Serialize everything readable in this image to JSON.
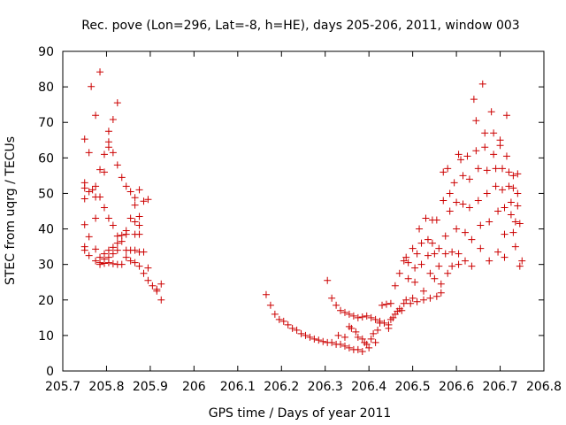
{
  "chart_data": {
    "type": "scatter",
    "title": "Rec. pove (Lon=296, Lat=-8, h=HE), days 205-206, 2011, window 003",
    "xlabel": "GPS time / Days of year 2011",
    "ylabel": "STEC from uqrg / TECUs",
    "xlim": [
      205.7,
      206.8
    ],
    "ylim": [
      0,
      90
    ],
    "xticks": [
      "205.7",
      "205.8",
      "205.9",
      "206",
      "206.1",
      "206.2",
      "206.3",
      "206.4",
      "206.5",
      "206.6",
      "206.7",
      "206.8"
    ],
    "yticks": [
      "0",
      "10",
      "20",
      "30",
      "40",
      "50",
      "60",
      "70",
      "80",
      "90"
    ],
    "marker": "+",
    "marker_color": "#cc0000",
    "grid": false,
    "legend": "none",
    "series": [
      {
        "points": [
          [
            205.75,
            65.3
          ],
          [
            205.75,
            53.0
          ],
          [
            205.75,
            51.5
          ],
          [
            205.75,
            48.5
          ],
          [
            205.75,
            41.2
          ],
          [
            205.75,
            35.0
          ],
          [
            205.75,
            34.0
          ],
          [
            205.76,
            61.5
          ],
          [
            205.76,
            50.5
          ],
          [
            205.76,
            37.8
          ],
          [
            205.76,
            32.5
          ],
          [
            205.765,
            80.1
          ],
          [
            205.768,
            51.0
          ],
          [
            205.775,
            72.0
          ],
          [
            205.775,
            52.0
          ],
          [
            205.775,
            43.0
          ],
          [
            205.775,
            49.0
          ],
          [
            205.775,
            34.3
          ],
          [
            205.775,
            31.0
          ],
          [
            205.785,
            84.2
          ],
          [
            205.785,
            56.7
          ],
          [
            205.785,
            49.0
          ],
          [
            205.785,
            32.0
          ],
          [
            205.785,
            30.5
          ],
          [
            205.785,
            30.0
          ],
          [
            205.795,
            61.0
          ],
          [
            205.795,
            56.0
          ],
          [
            205.795,
            46.0
          ],
          [
            205.795,
            33.0
          ],
          [
            205.795,
            31.5
          ],
          [
            205.795,
            30.3
          ],
          [
            205.805,
            67.5
          ],
          [
            205.805,
            64.5
          ],
          [
            205.805,
            63.0
          ],
          [
            205.805,
            43.0
          ],
          [
            205.805,
            34.0
          ],
          [
            205.805,
            32.0
          ],
          [
            205.805,
            30.5
          ],
          [
            205.815,
            70.8
          ],
          [
            205.815,
            61.5
          ],
          [
            205.815,
            41.0
          ],
          [
            205.815,
            34.8
          ],
          [
            205.815,
            33.0
          ],
          [
            205.815,
            30.2
          ],
          [
            205.825,
            75.5
          ],
          [
            205.825,
            58.0
          ],
          [
            205.825,
            38.0
          ],
          [
            205.825,
            36.0
          ],
          [
            205.825,
            34.0
          ],
          [
            205.825,
            30.0
          ],
          [
            205.835,
            54.5
          ],
          [
            205.835,
            38.2
          ],
          [
            205.835,
            36.5
          ],
          [
            205.835,
            30.0
          ],
          [
            205.845,
            52.0
          ],
          [
            205.845,
            39.5
          ],
          [
            205.845,
            38.5
          ],
          [
            205.845,
            34.0
          ],
          [
            205.845,
            32.0
          ],
          [
            205.855,
            50.5
          ],
          [
            205.855,
            43.0
          ],
          [
            205.855,
            34.0
          ],
          [
            205.855,
            31.0
          ],
          [
            205.865,
            48.8
          ],
          [
            205.865,
            46.7
          ],
          [
            205.865,
            42.0
          ],
          [
            205.865,
            38.5
          ],
          [
            205.865,
            34.0
          ],
          [
            205.865,
            30.5
          ],
          [
            205.875,
            51.0
          ],
          [
            205.875,
            43.5
          ],
          [
            205.875,
            41.0
          ],
          [
            205.875,
            38.5
          ],
          [
            205.875,
            33.5
          ],
          [
            205.875,
            29.5
          ],
          [
            205.885,
            47.8
          ],
          [
            205.885,
            33.5
          ],
          [
            205.885,
            27.5
          ],
          [
            205.895,
            48.3
          ],
          [
            205.895,
            29.0
          ],
          [
            205.895,
            25.5
          ],
          [
            205.905,
            24.0
          ],
          [
            205.915,
            23.0
          ],
          [
            205.915,
            22.5
          ],
          [
            205.925,
            24.5
          ],
          [
            205.925,
            20.0
          ],
          [
            206.165,
            21.5
          ],
          [
            206.175,
            18.5
          ],
          [
            206.185,
            16.0
          ],
          [
            206.195,
            14.5
          ],
          [
            206.205,
            14.0
          ],
          [
            206.215,
            13.0
          ],
          [
            206.225,
            12.0
          ],
          [
            206.235,
            11.5
          ],
          [
            206.245,
            10.5
          ],
          [
            206.255,
            10.0
          ],
          [
            206.265,
            9.5
          ],
          [
            206.275,
            9.0
          ],
          [
            206.285,
            8.7
          ],
          [
            206.295,
            8.3
          ],
          [
            206.305,
            8.0
          ],
          [
            206.315,
            8.0
          ],
          [
            206.325,
            7.5
          ],
          [
            206.335,
            7.5
          ],
          [
            206.345,
            7.0
          ],
          [
            206.355,
            6.5
          ],
          [
            206.365,
            6.0
          ],
          [
            206.375,
            6.0
          ],
          [
            206.385,
            5.5
          ],
          [
            206.305,
            25.5
          ],
          [
            206.315,
            20.5
          ],
          [
            206.325,
            18.5
          ],
          [
            206.335,
            17.0
          ],
          [
            206.345,
            16.5
          ],
          [
            206.355,
            16.0
          ],
          [
            206.365,
            15.5
          ],
          [
            206.375,
            15.0
          ],
          [
            206.385,
            15.2
          ],
          [
            206.395,
            15.5
          ],
          [
            206.405,
            15.0
          ],
          [
            206.415,
            14.5
          ],
          [
            206.425,
            14.0
          ],
          [
            206.435,
            13.5
          ],
          [
            206.445,
            13.0
          ],
          [
            206.33,
            10.0
          ],
          [
            206.345,
            9.5
          ],
          [
            206.355,
            12.5
          ],
          [
            206.36,
            12.0
          ],
          [
            206.37,
            11.0
          ],
          [
            206.375,
            9.5
          ],
          [
            206.385,
            9.0
          ],
          [
            206.39,
            8.0
          ],
          [
            206.395,
            7.5
          ],
          [
            206.4,
            6.5
          ],
          [
            206.405,
            9.0
          ],
          [
            206.41,
            10.5
          ],
          [
            206.415,
            8.0
          ],
          [
            206.42,
            11.5
          ],
          [
            206.425,
            13.5
          ],
          [
            206.43,
            18.5
          ],
          [
            206.44,
            18.8
          ],
          [
            206.45,
            19.0
          ],
          [
            206.445,
            12.0
          ],
          [
            206.45,
            14.5
          ],
          [
            206.455,
            15.0
          ],
          [
            206.46,
            16.0
          ],
          [
            206.465,
            16.8
          ],
          [
            206.47,
            17.5
          ],
          [
            206.46,
            24.0
          ],
          [
            206.47,
            27.5
          ],
          [
            206.475,
            17.0
          ],
          [
            206.48,
            19.0
          ],
          [
            206.485,
            20.0
          ],
          [
            206.48,
            31.0
          ],
          [
            206.485,
            32.0
          ],
          [
            206.49,
            30.5
          ],
          [
            206.49,
            26.0
          ],
          [
            206.495,
            19.0
          ],
          [
            206.5,
            20.5
          ],
          [
            206.5,
            34.5
          ],
          [
            206.505,
            29.0
          ],
          [
            206.505,
            25.0
          ],
          [
            206.51,
            33.0
          ],
          [
            206.51,
            19.5
          ],
          [
            206.515,
            40.0
          ],
          [
            206.52,
            36.0
          ],
          [
            206.52,
            30.0
          ],
          [
            206.525,
            22.5
          ],
          [
            206.525,
            20.0
          ],
          [
            206.53,
            43.0
          ],
          [
            206.535,
            37.0
          ],
          [
            206.535,
            32.5
          ],
          [
            206.54,
            27.5
          ],
          [
            206.54,
            20.5
          ],
          [
            206.545,
            42.5
          ],
          [
            206.545,
            36.0
          ],
          [
            206.55,
            33.0
          ],
          [
            206.55,
            26.0
          ],
          [
            206.555,
            21.0
          ],
          [
            206.555,
            42.5
          ],
          [
            206.56,
            34.5
          ],
          [
            206.56,
            29.5
          ],
          [
            206.565,
            24.5
          ],
          [
            206.565,
            22.0
          ],
          [
            206.57,
            56.0
          ],
          [
            206.57,
            48.0
          ],
          [
            206.575,
            38.0
          ],
          [
            206.575,
            33.0
          ],
          [
            206.58,
            27.5
          ],
          [
            206.58,
            57.0
          ],
          [
            206.585,
            50.0
          ],
          [
            206.585,
            45.0
          ],
          [
            206.59,
            33.5
          ],
          [
            206.59,
            29.5
          ],
          [
            206.595,
            53.0
          ],
          [
            206.6,
            47.5
          ],
          [
            206.6,
            40.0
          ],
          [
            206.605,
            33.0
          ],
          [
            206.605,
            30.0
          ],
          [
            206.605,
            61.0
          ],
          [
            206.61,
            59.5
          ],
          [
            206.615,
            55.0
          ],
          [
            206.615,
            47.0
          ],
          [
            206.62,
            39.0
          ],
          [
            206.62,
            31.0
          ],
          [
            206.625,
            60.5
          ],
          [
            206.63,
            54.0
          ],
          [
            206.63,
            46.0
          ],
          [
            206.635,
            37.0
          ],
          [
            206.635,
            29.5
          ],
          [
            206.64,
            76.5
          ],
          [
            206.645,
            70.5
          ],
          [
            206.645,
            62.0
          ],
          [
            206.65,
            57.0
          ],
          [
            206.65,
            48.0
          ],
          [
            206.655,
            41.0
          ],
          [
            206.655,
            34.5
          ],
          [
            206.66,
            80.8
          ],
          [
            206.665,
            67.0
          ],
          [
            206.665,
            63.0
          ],
          [
            206.67,
            56.5
          ],
          [
            206.67,
            50.0
          ],
          [
            206.675,
            42.0
          ],
          [
            206.675,
            31.0
          ],
          [
            206.68,
            73.0
          ],
          [
            206.685,
            67.0
          ],
          [
            206.685,
            61.0
          ],
          [
            206.69,
            57.0
          ],
          [
            206.69,
            52.0
          ],
          [
            206.695,
            45.0
          ],
          [
            206.695,
            33.5
          ],
          [
            206.7,
            65.0
          ],
          [
            206.7,
            63.5
          ],
          [
            206.705,
            57.0
          ],
          [
            206.705,
            51.0
          ],
          [
            206.71,
            46.0
          ],
          [
            206.71,
            38.5
          ],
          [
            206.71,
            32.0
          ],
          [
            206.715,
            72.0
          ],
          [
            206.715,
            60.5
          ],
          [
            206.72,
            56.0
          ],
          [
            206.72,
            52.0
          ],
          [
            206.725,
            47.5
          ],
          [
            206.725,
            44.0
          ],
          [
            206.73,
            39.0
          ],
          [
            206.73,
            55.0
          ],
          [
            206.73,
            51.5
          ],
          [
            206.735,
            42.0
          ],
          [
            206.735,
            35.0
          ],
          [
            206.74,
            55.5
          ],
          [
            206.74,
            50.0
          ],
          [
            206.74,
            46.5
          ],
          [
            206.745,
            41.5
          ],
          [
            206.745,
            29.5
          ],
          [
            206.75,
            31.0
          ]
        ]
      }
    ]
  }
}
